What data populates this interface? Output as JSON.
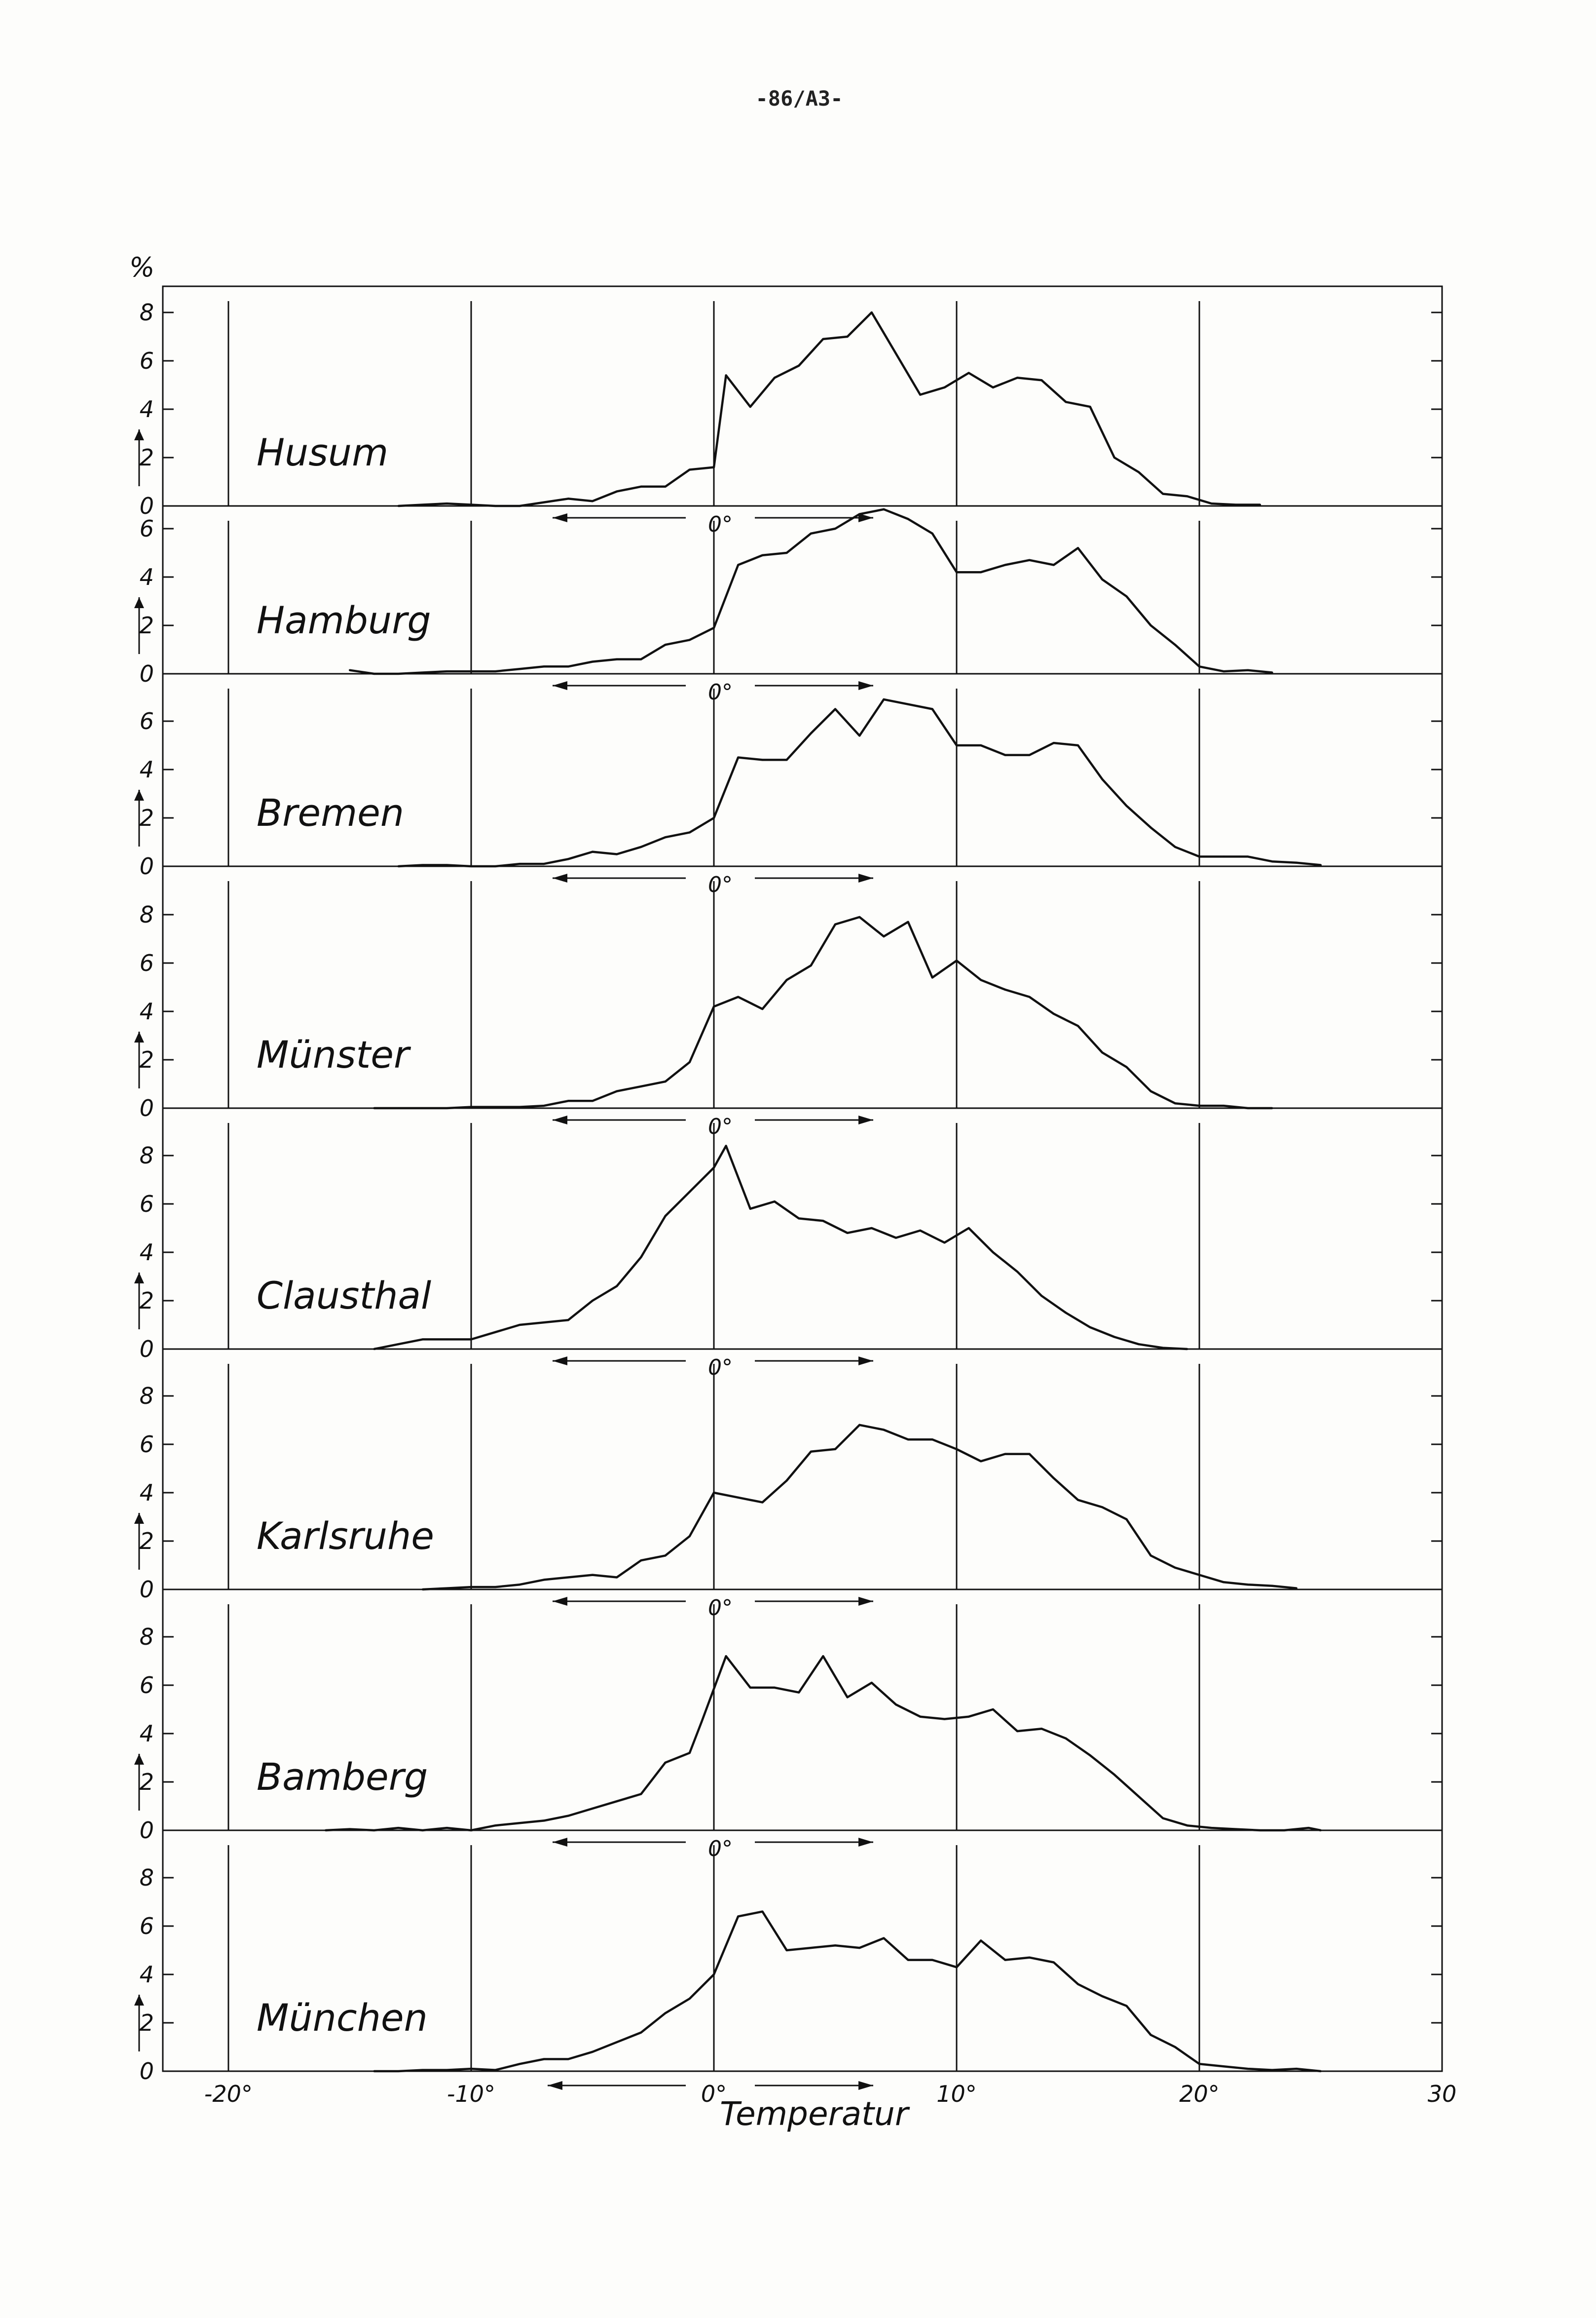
{
  "page": {
    "number": "-86/A3-"
  },
  "figure": {
    "y_unit": "%",
    "x_axis_label": "Temperatur",
    "x_tick_labels": [
      "-20°",
      "-10°",
      "0°",
      "10°",
      "20°",
      "30"
    ],
    "zero_marker": "0°",
    "colors": {
      "ink": "#111111",
      "paper": "#fdfdfb"
    }
  },
  "chart_data": {
    "type": "line",
    "xlabel": "Temperatur",
    "ylabel": "%",
    "xlim": [
      -22,
      30
    ],
    "grid": "vertical lines at -20, -10, 0, 10, 20",
    "panels": [
      {
        "name": "Husum",
        "ylim": [
          0,
          8
        ],
        "yticks": [
          "0",
          "2",
          "4",
          "6",
          "8"
        ],
        "x": [
          -13,
          -12,
          -11,
          -10,
          -9,
          -8,
          -7,
          -6,
          -5,
          -4,
          -3,
          -2,
          -1,
          0,
          0.5,
          1.5,
          2.5,
          3.5,
          4.5,
          5.5,
          6.5,
          8.5,
          9.5,
          10.5,
          11.5,
          12.5,
          13.5,
          14.5,
          15.5,
          16.5,
          17.5,
          18.5,
          19.5,
          20.5,
          21.5,
          22.5
        ],
        "y": [
          0,
          0.05,
          0.1,
          0.05,
          0,
          0,
          0.15,
          0.3,
          0.2,
          0.6,
          0.8,
          0.8,
          1.5,
          1.6,
          5.4,
          4.1,
          5.3,
          5.8,
          6.9,
          7.0,
          8.0,
          4.6,
          4.9,
          5.5,
          4.9,
          5.3,
          5.2,
          4.3,
          4.1,
          2.0,
          1.4,
          0.5,
          0.4,
          0.1,
          0.05,
          0.05
        ]
      },
      {
        "name": "Hamburg",
        "ylim": [
          0,
          7
        ],
        "yticks": [
          "0",
          "2",
          "4",
          "6"
        ],
        "x": [
          -15,
          -14,
          -13,
          -12,
          -11,
          -10,
          -9,
          -8,
          -7,
          -6,
          -5,
          -4,
          -3,
          -2,
          -1,
          0,
          1,
          2,
          3,
          4,
          5,
          6,
          7,
          8,
          9,
          10,
          11,
          12,
          13,
          14,
          15,
          16,
          17,
          18,
          19,
          20,
          21,
          22,
          23
        ],
        "y": [
          0.15,
          0,
          0,
          0.05,
          0.1,
          0.1,
          0.1,
          0.2,
          0.3,
          0.3,
          0.5,
          0.6,
          0.6,
          1.2,
          1.4,
          1.9,
          4.5,
          4.9,
          5.0,
          5.8,
          6.0,
          6.6,
          6.8,
          6.4,
          5.8,
          4.2,
          4.2,
          4.5,
          4.7,
          4.5,
          5.2,
          3.9,
          3.2,
          2.0,
          1.2,
          0.3,
          0.1,
          0.15,
          0.05
        ]
      },
      {
        "name": "Bremen",
        "ylim": [
          0,
          7
        ],
        "yticks": [
          "0",
          "2",
          "4",
          "6"
        ],
        "x": [
          -13,
          -12,
          -11,
          -10,
          -9,
          -8,
          -7,
          -6,
          -5,
          -4,
          -3,
          -2,
          -1,
          0,
          1,
          2,
          3,
          4,
          5,
          6,
          7,
          8,
          9,
          10,
          11,
          12,
          13,
          14,
          15,
          16,
          17,
          18,
          19,
          20,
          21,
          22,
          23,
          24,
          25
        ],
        "y": [
          0,
          0.05,
          0.05,
          0,
          0,
          0.1,
          0.1,
          0.3,
          0.6,
          0.5,
          0.8,
          1.2,
          1.4,
          2.0,
          4.5,
          4.4,
          4.4,
          5.5,
          6.5,
          5.4,
          6.9,
          6.7,
          6.5,
          5.0,
          5.0,
          4.6,
          4.6,
          5.1,
          5.0,
          3.6,
          2.5,
          1.6,
          0.8,
          0.4,
          0.4,
          0.4,
          0.2,
          0.15,
          0.05
        ]
      },
      {
        "name": "Münster",
        "ylim": [
          0,
          8
        ],
        "yticks": [
          "0",
          "2",
          "4",
          "6",
          "8"
        ],
        "x": [
          -14,
          -13,
          -12,
          -11,
          -10,
          -9,
          -8,
          -7,
          -6,
          -5,
          -4,
          -3,
          -2,
          -1,
          0,
          1,
          2,
          3,
          4,
          5,
          6,
          7,
          8,
          9,
          10,
          11,
          12,
          13,
          14,
          15,
          16,
          17,
          18,
          19,
          20,
          21,
          22,
          23
        ],
        "y": [
          0,
          0,
          0,
          0,
          0.05,
          0.05,
          0.05,
          0.1,
          0.3,
          0.3,
          0.7,
          0.9,
          1.1,
          1.9,
          4.2,
          4.6,
          4.1,
          5.3,
          5.9,
          7.6,
          7.9,
          7.1,
          7.7,
          5.4,
          6.1,
          5.3,
          4.9,
          4.6,
          3.9,
          3.4,
          2.3,
          1.7,
          0.7,
          0.2,
          0.1,
          0.1,
          0,
          0
        ]
      },
      {
        "name": "Clausthal",
        "ylim": [
          0,
          8
        ],
        "yticks": [
          "0",
          "2",
          "4",
          "6",
          "8"
        ],
        "x": [
          -14,
          -13,
          -12,
          -11,
          -10,
          -9,
          -8,
          -7,
          -6,
          -5,
          -4,
          -3,
          -2,
          -1,
          0,
          0.5,
          1.5,
          2.5,
          3.5,
          4.5,
          5.5,
          6.5,
          7.5,
          8.5,
          9.5,
          10.5,
          11.5,
          12.5,
          13.5,
          14.5,
          15.5,
          16.5,
          17.5,
          18.5,
          19.5
        ],
        "y": [
          0,
          0.2,
          0.4,
          0.4,
          0.4,
          0.7,
          1.0,
          1.1,
          1.2,
          2.0,
          2.6,
          3.8,
          5.5,
          6.5,
          7.5,
          8.4,
          5.8,
          6.1,
          5.4,
          5.3,
          4.8,
          5.0,
          4.6,
          4.9,
          4.4,
          5.0,
          4.0,
          3.2,
          2.2,
          1.5,
          0.9,
          0.5,
          0.2,
          0.05,
          0
        ]
      },
      {
        "name": "Karlsruhe",
        "ylim": [
          0,
          8
        ],
        "yticks": [
          "0",
          "2",
          "4",
          "6",
          "8"
        ],
        "x": [
          -12,
          -11,
          -10,
          -9,
          -8,
          -7,
          -6,
          -5,
          -4,
          -3,
          -2,
          -1,
          0,
          1,
          2,
          3,
          4,
          5,
          6,
          7,
          8,
          9,
          10,
          11,
          12,
          13,
          14,
          15,
          16,
          17,
          18,
          19,
          20,
          21,
          22,
          23,
          24
        ],
        "y": [
          0,
          0.05,
          0.1,
          0.1,
          0.2,
          0.4,
          0.5,
          0.6,
          0.5,
          1.2,
          1.4,
          2.2,
          4.0,
          3.8,
          3.6,
          4.5,
          5.7,
          5.8,
          6.8,
          6.6,
          6.2,
          6.2,
          5.8,
          5.3,
          5.6,
          5.6,
          4.6,
          3.7,
          3.4,
          2.9,
          1.4,
          0.9,
          0.6,
          0.3,
          0.2,
          0.15,
          0.05
        ]
      },
      {
        "name": "Bamberg",
        "ylim": [
          0,
          8
        ],
        "yticks": [
          "0",
          "2",
          "4",
          "6",
          "8"
        ],
        "x": [
          -16,
          -15,
          -14,
          -13,
          -12,
          -11,
          -10,
          -9,
          -8,
          -7,
          -6,
          -5,
          -4,
          -3,
          -2,
          -1,
          -0.5,
          0.5,
          1.5,
          2.5,
          3.5,
          4.5,
          5.5,
          6.5,
          7.5,
          8.5,
          9.5,
          10.5,
          11.5,
          12.5,
          13.5,
          14.5,
          15.5,
          16.5,
          17.5,
          18.5,
          19.5,
          20.5,
          21.5,
          22.5,
          23.5,
          24.5,
          25
        ],
        "y": [
          0,
          0.05,
          0,
          0.1,
          0,
          0.1,
          0,
          0.2,
          0.3,
          0.4,
          0.6,
          0.9,
          1.2,
          1.5,
          2.8,
          3.2,
          4.5,
          7.2,
          5.9,
          5.9,
          5.7,
          7.2,
          5.5,
          6.1,
          5.2,
          4.7,
          4.6,
          4.7,
          5.0,
          4.1,
          4.2,
          3.8,
          3.1,
          2.3,
          1.4,
          0.5,
          0.2,
          0.1,
          0.05,
          0,
          0,
          0.1,
          0
        ]
      },
      {
        "name": "München",
        "ylim": [
          0,
          8
        ],
        "yticks": [
          "0",
          "2",
          "4",
          "6",
          "8"
        ],
        "x": [
          -14,
          -13,
          -12,
          -11,
          -10,
          -9,
          -8,
          -7,
          -6,
          -5,
          -4,
          -3,
          -2,
          -1,
          0,
          1,
          2,
          3,
          4,
          5,
          6,
          7,
          8,
          9,
          10,
          11,
          12,
          13,
          14,
          15,
          16,
          17,
          18,
          19,
          20,
          21,
          22,
          23,
          24,
          25
        ],
        "y": [
          0,
          0,
          0.05,
          0.05,
          0.1,
          0.05,
          0.3,
          0.5,
          0.5,
          0.8,
          1.2,
          1.6,
          2.4,
          3.0,
          4.0,
          6.4,
          6.6,
          5.0,
          5.1,
          5.2,
          5.1,
          5.5,
          4.6,
          4.6,
          4.3,
          5.4,
          4.6,
          4.7,
          4.5,
          3.6,
          3.1,
          2.7,
          1.5,
          1.0,
          0.3,
          0.2,
          0.1,
          0.05,
          0.1,
          0
        ]
      }
    ]
  }
}
